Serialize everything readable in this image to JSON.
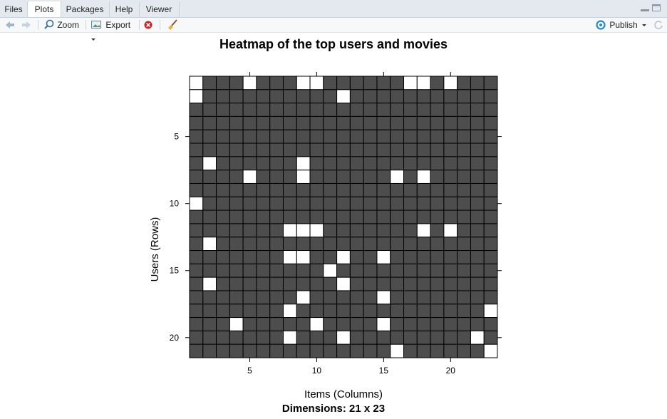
{
  "tabs": [
    "Files",
    "Plots",
    "Packages",
    "Help",
    "Viewer"
  ],
  "toolbar": {
    "zoom_label": "Zoom",
    "export_label": "Export",
    "publish_label": "Publish"
  },
  "chart_data": {
    "type": "heatmap",
    "title": "Heatmap of the top users and movies",
    "xlabel": "Items (Columns)",
    "ylabel": "Users (Rows)",
    "subtitle": "Dimensions: 21 x 23",
    "n_rows": 21,
    "n_cols": 23,
    "x_ticks": [
      5,
      10,
      15,
      20
    ],
    "y_ticks": [
      5,
      10,
      15,
      20
    ],
    "xlim": [
      0.5,
      23.5
    ],
    "ylim": [
      0.5,
      21.5
    ],
    "y_axis_reversed": true,
    "filled_color": "#4d4d4d",
    "empty_color": "#ffffff",
    "cell_border_color": "#000000",
    "grid": true,
    "legend": "none",
    "empty_cells": [
      [
        1,
        1
      ],
      [
        1,
        5
      ],
      [
        1,
        9
      ],
      [
        1,
        10
      ],
      [
        1,
        17
      ],
      [
        1,
        18
      ],
      [
        1,
        20
      ],
      [
        2,
        1
      ],
      [
        2,
        12
      ],
      [
        7,
        2
      ],
      [
        7,
        9
      ],
      [
        8,
        5
      ],
      [
        8,
        9
      ],
      [
        8,
        16
      ],
      [
        8,
        18
      ],
      [
        10,
        1
      ],
      [
        12,
        8
      ],
      [
        12,
        9
      ],
      [
        12,
        10
      ],
      [
        12,
        18
      ],
      [
        12,
        20
      ],
      [
        13,
        2
      ],
      [
        14,
        8
      ],
      [
        14,
        9
      ],
      [
        14,
        12
      ],
      [
        14,
        15
      ],
      [
        15,
        11
      ],
      [
        16,
        2
      ],
      [
        16,
        12
      ],
      [
        17,
        9
      ],
      [
        17,
        15
      ],
      [
        18,
        8
      ],
      [
        18,
        23
      ],
      [
        19,
        4
      ],
      [
        19,
        10
      ],
      [
        19,
        15
      ],
      [
        20,
        8
      ],
      [
        20,
        12
      ],
      [
        20,
        22
      ],
      [
        21,
        16
      ],
      [
        21,
        23
      ]
    ]
  }
}
